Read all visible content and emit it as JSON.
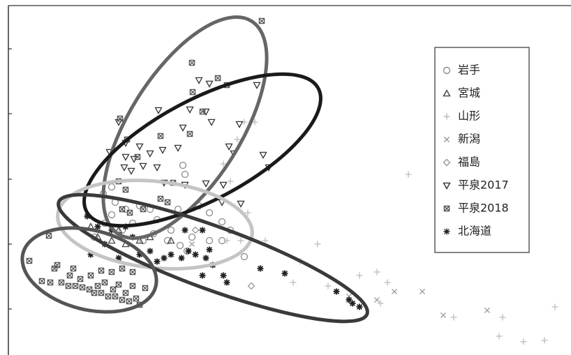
{
  "chart_data": {
    "type": "scatter",
    "xlim": [
      0,
      804
    ],
    "ylim": [
      0,
      492
    ],
    "yticks": [
      57,
      150,
      243,
      337,
      430
    ],
    "legend": "upper right",
    "series": [
      {
        "name": "岩手",
        "color": "#8a8a8a",
        "marker": "circle",
        "x": [
          136,
          148,
          153,
          168,
          188,
          203,
          250,
          253,
          243,
          273,
          288,
          306,
          318,
          288,
          263,
          246,
          233,
          208,
          193,
          178,
          163,
          138,
          123,
          213,
          228,
          256,
          306,
          338,
          148
        ],
        "values": [
          222,
          232,
          210,
          200,
          205,
          200,
          263,
          250,
          200,
          205,
          195,
          182,
          170,
          155,
          160,
          148,
          170,
          165,
          155,
          180,
          170,
          180,
          160,
          185,
          155,
          140,
          155,
          132,
          192
        ]
      },
      {
        "name": "宮城",
        "color": "#444444",
        "marker": "triangle-up",
        "x": [
          118,
          128,
          148,
          168,
          188,
          203,
          233,
          158
        ],
        "values": [
          175,
          160,
          155,
          150,
          155,
          160,
          155,
          170
        ]
      },
      {
        "name": "山形",
        "color": "#bbbbbb",
        "marker": "plus",
        "x": [
          338,
          353,
          328,
          308,
          318,
          573,
          343,
          333,
          313,
          368,
          443,
          418,
          503,
          528,
          543,
          458,
          533,
          638,
          708,
          703,
          738,
          768,
          783,
          408
        ],
        "values": [
          325,
          325,
          300,
          265,
          240,
          250,
          195,
          155,
          155,
          155,
          150,
          125,
          105,
          110,
          95,
          90,
          65,
          45,
          45,
          18,
          10,
          12,
          60,
          95
        ]
      },
      {
        "name": "新潟",
        "color": "#999999",
        "marker": "cross",
        "x": [
          488,
          528,
          553,
          593,
          623,
          686,
          263
        ],
        "values": [
          75,
          70,
          82,
          82,
          48,
          55,
          150
        ]
      },
      {
        "name": "福島",
        "color": "#999999",
        "marker": "diamond",
        "x": [
          348,
          268
        ],
        "values": [
          90,
          170
        ]
      },
      {
        "name": "平泉2017",
        "color": "#333333",
        "marker": "triangle-down",
        "x": [
          273,
          288,
          356,
          260,
          283,
          291,
          215,
          250,
          331,
          158,
          168,
          188,
          203,
          221,
          243,
          145,
          168,
          180,
          166,
          176,
          193,
          213,
          316,
          323,
          365,
          308,
          253,
          333,
          283,
          373,
          306,
          223
        ],
        "values": [
          385,
          380,
          378,
          343,
          340,
          325,
          342,
          317,
          322,
          325,
          295,
          290,
          280,
          285,
          288,
          282,
          275,
          272,
          260,
          255,
          262,
          260,
          290,
          280,
          278,
          235,
          235,
          208,
          237,
          260,
          210,
          238
        ]
      },
      {
        "name": "平泉2018",
        "color": "#555555",
        "marker": "square-x",
        "x": [
          363,
          263,
          300,
          313,
          264,
          160,
          170,
          218,
          260,
          278,
          185,
          158,
          168,
          236,
          218,
          228,
          193,
          163,
          174,
          58,
          30,
          70,
          66,
          93,
          103,
          118,
          133,
          148,
          163,
          178,
          48,
          60,
          76,
          86,
          96,
          106,
          116,
          123,
          133,
          143,
          153,
          163,
          173,
          183,
          196,
          138,
          158,
          178,
          88,
          128,
          150,
          168,
          188
        ],
        "values": [
          470,
          410,
          388,
          378,
          368,
          330,
          300,
          305,
          308,
          340,
          275,
          240,
          228,
          238,
          215,
          210,
          200,
          200,
          195,
          162,
          126,
          120,
          115,
          115,
          100,
          105,
          112,
          110,
          115,
          110,
          97,
          95,
          95,
          90,
          90,
          88,
          85,
          80,
          80,
          75,
          75,
          70,
          68,
          72,
          87,
          95,
          92,
          90,
          105,
          90,
          85,
          80,
          63
        ]
      },
      {
        "name": "北海道",
        "color": "#222222",
        "marker": "asterisk",
        "x": [
          113,
          128,
          148,
          168,
          178,
          253,
          278,
          138,
          188,
          203,
          213,
          223,
          233,
          248,
          258,
          268,
          283,
          293,
          278,
          308,
          313,
          361,
          396,
          470,
          488,
          493,
          503,
          118,
          158,
          288
        ],
        "values": [
          190,
          175,
          170,
          175,
          160,
          170,
          170,
          150,
          135,
          140,
          125,
          130,
          135,
          130,
          140,
          135,
          130,
          120,
          105,
          105,
          95,
          115,
          108,
          82,
          70,
          65,
          60,
          135,
          130,
          142
        ]
      }
    ]
  }
}
